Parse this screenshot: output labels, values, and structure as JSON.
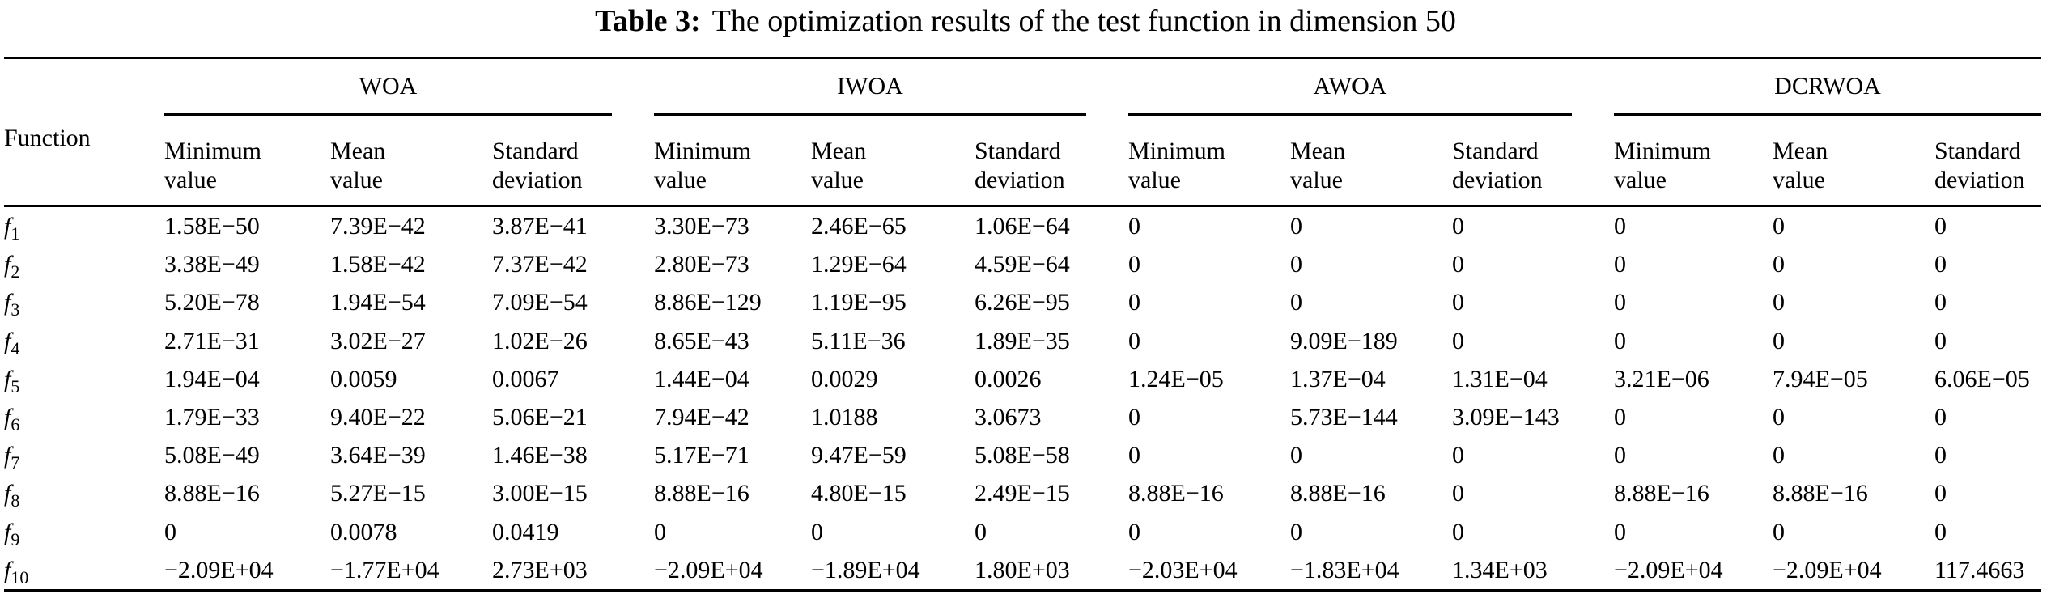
{
  "title": {
    "label": "Table 3:",
    "text": "The optimization results of the test function in dimension 50"
  },
  "table": {
    "function_header": "Function",
    "groups": [
      "WOA",
      "IWOA",
      "AWOA",
      "DCRWOA"
    ],
    "sub_columns": [
      {
        "line1": "Minimum",
        "line2": "value"
      },
      {
        "line1": "Mean",
        "line2": "value"
      },
      {
        "line1": "Standard",
        "line2": "deviation"
      }
    ],
    "rows": [
      {
        "function": {
          "base": "f",
          "sub": "1"
        },
        "values": [
          "1.58E−50",
          "7.39E−42",
          "3.87E−41",
          "3.30E−73",
          "2.46E−65",
          "1.06E−64",
          "0",
          "0",
          "0",
          "0",
          "0",
          "0"
        ]
      },
      {
        "function": {
          "base": "f",
          "sub": "2"
        },
        "values": [
          "3.38E−49",
          "1.58E−42",
          "7.37E−42",
          "2.80E−73",
          "1.29E−64",
          "4.59E−64",
          "0",
          "0",
          "0",
          "0",
          "0",
          "0"
        ]
      },
      {
        "function": {
          "base": "f",
          "sub": "3"
        },
        "values": [
          "5.20E−78",
          "1.94E−54",
          "7.09E−54",
          "8.86E−129",
          "1.19E−95",
          "6.26E−95",
          "0",
          "0",
          "0",
          "0",
          "0",
          "0"
        ]
      },
      {
        "function": {
          "base": "f",
          "sub": "4"
        },
        "values": [
          "2.71E−31",
          "3.02E−27",
          "1.02E−26",
          "8.65E−43",
          "5.11E−36",
          "1.89E−35",
          "0",
          "9.09E−189",
          "0",
          "0",
          "0",
          "0"
        ]
      },
      {
        "function": {
          "base": "f",
          "sub": "5"
        },
        "values": [
          "1.94E−04",
          "0.0059",
          "0.0067",
          "1.44E−04",
          "0.0029",
          "0.0026",
          "1.24E−05",
          "1.37E−04",
          "1.31E−04",
          "3.21E−06",
          "7.94E−05",
          "6.06E−05"
        ]
      },
      {
        "function": {
          "base": "f",
          "sub": "6"
        },
        "values": [
          "1.79E−33",
          "9.40E−22",
          "5.06E−21",
          "7.94E−42",
          "1.0188",
          "3.0673",
          "0",
          "5.73E−144",
          "3.09E−143",
          "0",
          "0",
          "0"
        ]
      },
      {
        "function": {
          "base": "f",
          "sub": "7"
        },
        "values": [
          "5.08E−49",
          "3.64E−39",
          "1.46E−38",
          "5.17E−71",
          "9.47E−59",
          "5.08E−58",
          "0",
          "0",
          "0",
          "0",
          "0",
          "0"
        ]
      },
      {
        "function": {
          "base": "f",
          "sub": "8"
        },
        "values": [
          "8.88E−16",
          "5.27E−15",
          "3.00E−15",
          "8.88E−16",
          "4.80E−15",
          "2.49E−15",
          "8.88E−16",
          "8.88E−16",
          "0",
          "8.88E−16",
          "8.88E−16",
          "0"
        ]
      },
      {
        "function": {
          "base": "f",
          "sub": "9"
        },
        "values": [
          "0",
          "0.0078",
          "0.0419",
          "0",
          "0",
          "0",
          "0",
          "0",
          "0",
          "0",
          "0",
          "0"
        ]
      },
      {
        "function": {
          "base": "f",
          "sub": "10"
        },
        "values": [
          "−2.09E+04",
          "−1.77E+04",
          "2.73E+03",
          "−2.09E+04",
          "−1.89E+04",
          "1.80E+03",
          "−2.03E+04",
          "−1.83E+04",
          "1.34E+03",
          "−2.09E+04",
          "−2.09E+04",
          "117.4663"
        ]
      }
    ]
  },
  "colors": {
    "text": "#000000",
    "background": "#ffffff",
    "rule": "#000000"
  }
}
